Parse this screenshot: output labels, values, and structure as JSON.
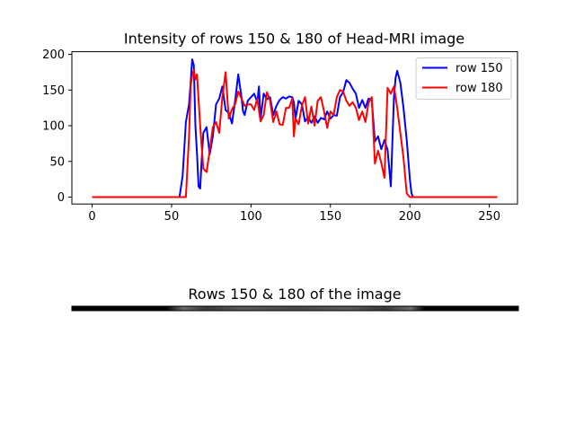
{
  "chart_data": [
    {
      "type": "line",
      "title": "Intensity of rows 150 & 180 of Head-MRI image",
      "xlabel": "",
      "ylabel": "",
      "xlim": [
        -12.75,
        267.75
      ],
      "ylim": [
        -9.7,
        203.7
      ],
      "xticks": [
        0,
        50,
        100,
        150,
        200,
        250
      ],
      "yticks": [
        0,
        50,
        100,
        150,
        200
      ],
      "grid": false,
      "legend": "upper-right",
      "series": [
        {
          "name": "row 150",
          "color": "#0000ff",
          "x": [
            0,
            55,
            57,
            59,
            61,
            62,
            63,
            64,
            65,
            66,
            67,
            68,
            69,
            70,
            72,
            74,
            76,
            78,
            80,
            82,
            84,
            86,
            88,
            90,
            92,
            94,
            95,
            96,
            98,
            100,
            102,
            104,
            105,
            106,
            108,
            110,
            112,
            114,
            116,
            118,
            120,
            122,
            124,
            126,
            127,
            128,
            130,
            132,
            134,
            136,
            138,
            140,
            142,
            144,
            146,
            148,
            150,
            152,
            154,
            156,
            158,
            160,
            162,
            164,
            166,
            168,
            170,
            172,
            174,
            176,
            178,
            180,
            182,
            184,
            186,
            188,
            190,
            191,
            192,
            194,
            196,
            198,
            200,
            201,
            202,
            255
          ],
          "y": [
            0,
            0,
            30,
            105,
            130,
            160,
            193,
            185,
            100,
            60,
            15,
            12,
            55,
            90,
            98,
            60,
            85,
            130,
            138,
            155,
            122,
            118,
            103,
            135,
            172,
            140,
            120,
            115,
            135,
            140,
            145,
            133,
            155,
            110,
            145,
            137,
            140,
            115,
            128,
            136,
            140,
            138,
            141,
            140,
            133,
            110,
            135,
            130,
            106,
            112,
            104,
            113,
            104,
            111,
            109,
            120,
            110,
            115,
            114,
            140,
            147,
            164,
            160,
            152,
            145,
            125,
            136,
            125,
            138,
            136,
            78,
            85,
            67,
            80,
            66,
            15,
            140,
            167,
            177,
            160,
            125,
            80,
            25,
            5,
            0,
            0
          ]
        },
        {
          "name": "row 180",
          "color": "#ff0000",
          "x": [
            0,
            59,
            61,
            62,
            63,
            64,
            65,
            66,
            68,
            70,
            72,
            74,
            76,
            78,
            80,
            82,
            84,
            86,
            88,
            90,
            92,
            94,
            96,
            98,
            100,
            102,
            104,
            106,
            108,
            110,
            112,
            114,
            116,
            118,
            120,
            122,
            124,
            126,
            127,
            128,
            130,
            132,
            134,
            136,
            138,
            140,
            142,
            144,
            146,
            148,
            150,
            152,
            154,
            156,
            158,
            160,
            162,
            164,
            166,
            168,
            170,
            172,
            174,
            176,
            178,
            180,
            182,
            184,
            186,
            188,
            190,
            192,
            194,
            196,
            198,
            200,
            255
          ],
          "y": [
            0,
            0,
            85,
            155,
            170,
            178,
            165,
            172,
            100,
            40,
            35,
            65,
            98,
            105,
            90,
            140,
            175,
            110,
            123,
            130,
            148,
            138,
            128,
            130,
            130,
            122,
            138,
            106,
            115,
            147,
            135,
            105,
            120,
            102,
            101,
            125,
            125,
            138,
            85,
            110,
            102,
            128,
            140,
            103,
            127,
            100,
            135,
            140,
            120,
            97,
            120,
            115,
            140,
            150,
            148,
            135,
            128,
            133,
            125,
            108,
            120,
            105,
            132,
            140,
            47,
            65,
            48,
            27,
            153,
            145,
            155,
            125,
            90,
            55,
            5,
            0,
            0
          ]
        }
      ]
    },
    {
      "type": "image",
      "title": "Rows 150 & 180 of the image"
    }
  ]
}
